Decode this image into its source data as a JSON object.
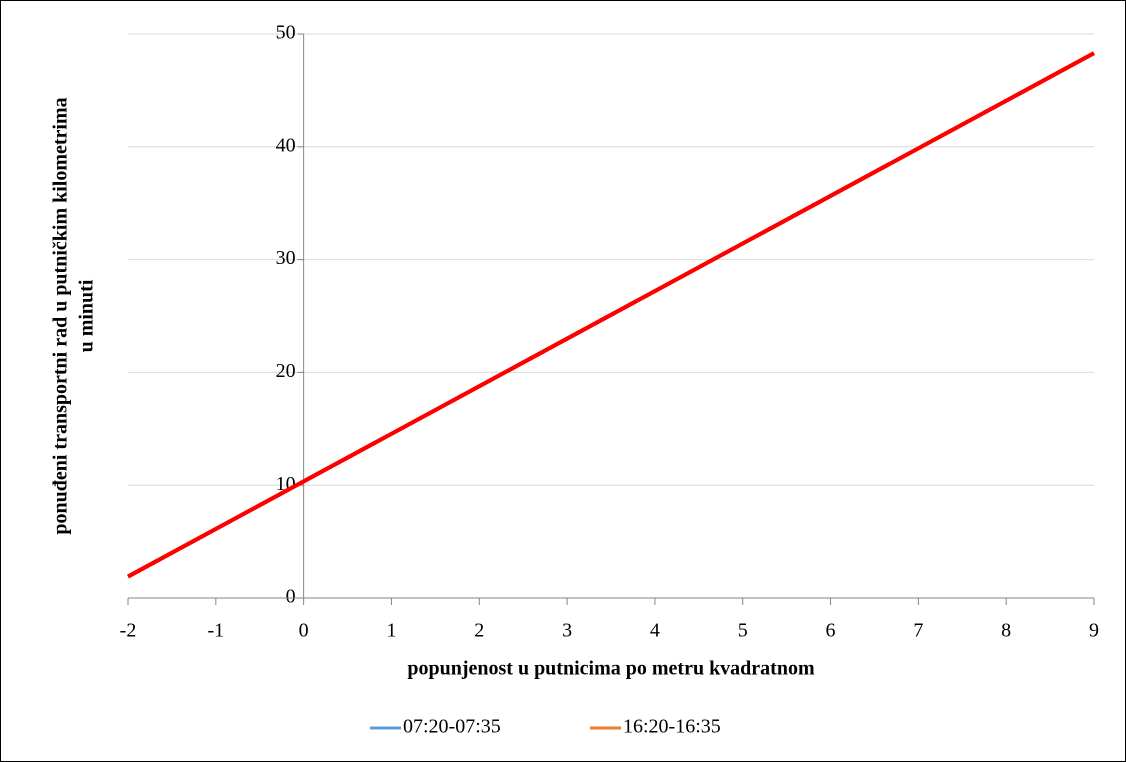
{
  "chart_data": {
    "type": "line",
    "xlabel": "popunjenost u putnicima po metru kvadratnom",
    "ylabel": [
      "ponuđeni transportni rad u putničkim kilometrima",
      "u minuti"
    ],
    "x": [
      -2,
      9
    ],
    "series": [
      {
        "name": "07:20-07:35",
        "color": "#5b9bd5",
        "values": [
          1.9,
          48.3
        ]
      },
      {
        "name": "16:20-16:35",
        "color": "#ed7d31",
        "values": [
          1.9,
          48.3
        ]
      }
    ],
    "line_color": "#ff0000",
    "xlim": [
      -2,
      9
    ],
    "xticks": [
      -2,
      -1,
      0,
      1,
      2,
      3,
      4,
      5,
      6,
      7,
      8,
      9
    ],
    "ylim": [
      0,
      50
    ],
    "yticks": [
      0,
      10,
      20,
      30,
      40,
      50
    ],
    "grid": true,
    "legend": "bottom"
  }
}
